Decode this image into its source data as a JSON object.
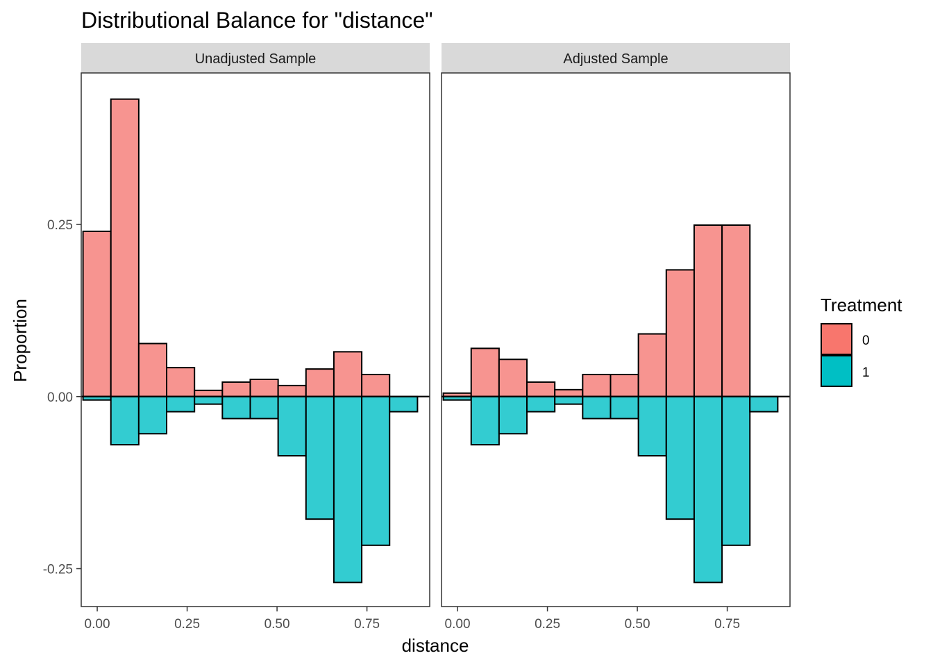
{
  "chart_data": {
    "type": "bar",
    "title": "Distributional Balance for \"distance\"",
    "xlabel": "distance",
    "ylabel": "Proportion",
    "xlim": [
      -0.0445,
      0.9245
    ],
    "ylim": [
      -0.305,
      0.47
    ],
    "x_ticks": [
      0.0,
      0.25,
      0.5,
      0.75
    ],
    "x_tick_labels": [
      "0.00",
      "0.25",
      "0.50",
      "0.75"
    ],
    "y_ticks": [
      0.25,
      0.0,
      -0.25
    ],
    "y_tick_labels": [
      "0.25",
      "0.00",
      "-0.25"
    ],
    "bin_width": 0.0775,
    "bin_starts": [
      -0.0395,
      0.038,
      0.1155,
      0.193,
      0.2705,
      0.348,
      0.4255,
      0.503,
      0.5805,
      0.658,
      0.7355,
      0.813
    ],
    "legend": {
      "title": "Treatment",
      "position": "right",
      "entries": [
        {
          "label": "0",
          "color": "#F8766D"
        },
        {
          "label": "1",
          "color": "#00BFC4"
        }
      ]
    },
    "panels": [
      {
        "strip": "Unadjusted Sample",
        "series": [
          {
            "name": "0",
            "values": [
              0.24,
              0.432,
              0.077,
              0.042,
              0.009,
              0.021,
              0.025,
              0.016,
              0.04,
              0.065,
              0.032,
              0.0
            ]
          },
          {
            "name": "1",
            "values": [
              -0.005,
              -0.07,
              -0.054,
              -0.022,
              -0.011,
              -0.032,
              -0.032,
              -0.086,
              -0.178,
              -0.27,
              -0.216,
              -0.022
            ]
          }
        ]
      },
      {
        "strip": "Adjusted Sample",
        "series": [
          {
            "name": "0",
            "values": [
              0.005,
              0.07,
              0.054,
              0.021,
              0.01,
              0.032,
              0.032,
              0.091,
              0.184,
              0.249,
              0.249,
              0.0
            ]
          },
          {
            "name": "1",
            "values": [
              -0.005,
              -0.07,
              -0.054,
              -0.022,
              -0.011,
              -0.032,
              -0.032,
              -0.086,
              -0.178,
              -0.27,
              -0.216,
              -0.022
            ]
          }
        ]
      }
    ]
  }
}
